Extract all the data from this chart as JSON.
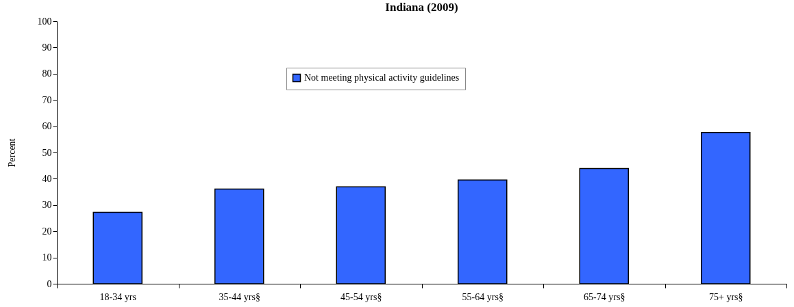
{
  "chart_data": {
    "type": "bar",
    "title": "Indiana (2009)",
    "ylabel": "Percent",
    "categories": [
      "18-34 yrs",
      "35-44 yrs§",
      "45-54 yrs§",
      "55-64 yrs§",
      "65-74 yrs§",
      "75+ yrs§"
    ],
    "series": [
      {
        "name": "Not meeting physical activity guidelines",
        "color": "#3366ff",
        "values": [
          27.2,
          36.1,
          36.9,
          39.5,
          43.9,
          57.6
        ]
      }
    ],
    "ylim": [
      0,
      100
    ],
    "yticks": [
      0,
      10,
      20,
      30,
      40,
      50,
      60,
      70,
      80,
      90,
      100
    ],
    "grid": false,
    "legend": "top"
  }
}
